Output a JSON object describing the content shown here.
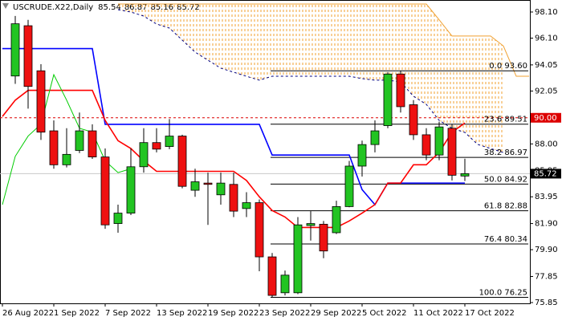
{
  "chart_data": {
    "type": "candlestick",
    "title": "USCRUDE.X22,Daily",
    "header_values": [
      85.54,
      86.87,
      85.16,
      85.72
    ],
    "categories": [
      "26 Aug 2022",
      null,
      null,
      null,
      "1 Sep 2022",
      null,
      null,
      null,
      "7 Sep 2022",
      null,
      null,
      null,
      "13 Sep 2022",
      null,
      null,
      null,
      "19 Sep 2022",
      null,
      null,
      null,
      "23 Sep 2022",
      null,
      null,
      null,
      "29 Sep 2022",
      null,
      null,
      null,
      "5 Oct 2022",
      null,
      null,
      null,
      "11 Oct 2022",
      null,
      null,
      null,
      "17 Oct 2022",
      null,
      null,
      null,
      null,
      null
    ],
    "open": [
      null,
      93.2,
      97.05,
      93.6,
      89.0,
      86.4,
      87.5,
      89.0,
      87.0,
      81.9,
      82.7,
      86.25,
      88.1,
      87.8,
      88.6,
      84.45,
      85.0,
      84.1,
      84.9,
      83.05,
      83.5,
      79.35,
      76.6,
      76.6,
      81.75,
      81.85,
      81.2,
      83.2,
      86.3,
      87.95,
      89.4,
      93.35,
      91.0,
      88.7,
      87.15,
      89.2,
      85.54,
      null,
      null,
      null,
      null,
      null
    ],
    "high": [
      null,
      97.8,
      97.5,
      94.1,
      89.8,
      89.2,
      90.4,
      89.5,
      87.65,
      83.35,
      87.65,
      89.2,
      89.2,
      89.9,
      88.7,
      86.1,
      85.8,
      85.8,
      85.8,
      84.3,
      83.75,
      79.65,
      78.3,
      82.4,
      82.85,
      82.1,
      83.65,
      86.7,
      88.25,
      89.8,
      93.5,
      93.6,
      91.35,
      89.2,
      89.7,
      89.5,
      86.87,
      null,
      null,
      null,
      null,
      null
    ],
    "low": [
      null,
      92.6,
      90.7,
      88.3,
      86.1,
      86.2,
      87.3,
      86.85,
      81.5,
      81.2,
      82.55,
      85.8,
      87.35,
      87.6,
      84.6,
      83.95,
      81.8,
      83.35,
      82.4,
      82.4,
      78.25,
      76.25,
      76.4,
      76.5,
      80.6,
      79.25,
      81.1,
      83.15,
      85.5,
      87.35,
      89.2,
      90.4,
      88.3,
      86.75,
      86.75,
      85.2,
      85.16,
      null,
      null,
      null,
      null,
      null
    ],
    "close": [
      null,
      97.2,
      92.4,
      88.9,
      86.4,
      87.2,
      89.0,
      87.0,
      81.8,
      82.7,
      86.25,
      88.1,
      87.6,
      88.6,
      84.75,
      85.1,
      84.9,
      85.0,
      82.85,
      83.5,
      79.35,
      76.4,
      77.95,
      81.8,
      81.9,
      79.8,
      83.2,
      86.3,
      87.95,
      89.0,
      93.35,
      90.85,
      88.7,
      87.15,
      89.3,
      85.6,
      85.72,
      null,
      null,
      null,
      null,
      null
    ],
    "up_color": "#22c422",
    "down_color": "#ee1111",
    "lines": [
      {
        "color": "#0000ff",
        "values": [
          95.3,
          95.3,
          95.3,
          95.3,
          95.3,
          95.3,
          95.3,
          95.3,
          89.5,
          89.5,
          89.5,
          89.5,
          89.5,
          89.5,
          89.5,
          89.5,
          89.5,
          89.5,
          89.5,
          89.5,
          89.5,
          87.15,
          87.15,
          87.15,
          87.15,
          87.15,
          87.15,
          87.15,
          84.5,
          83.35,
          85.0,
          85.0,
          85.0,
          85.0,
          85.0,
          85.0,
          85.0,
          null,
          null,
          null,
          null,
          null
        ]
      },
      {
        "color": "#ff0000",
        "values": [
          90.1,
          91.35,
          92.1,
          92.1,
          92.1,
          92.1,
          92.1,
          92.1,
          89.8,
          88.25,
          87.65,
          86.7,
          85.9,
          85.9,
          85.9,
          85.9,
          85.9,
          85.9,
          85.9,
          85.2,
          83.95,
          82.9,
          82.4,
          81.6,
          81.6,
          81.6,
          81.6,
          82.1,
          82.7,
          83.35,
          85.0,
          85.0,
          86.4,
          86.4,
          87.35,
          88.9,
          89.6,
          null,
          null,
          null,
          null,
          null
        ]
      },
      {
        "color": "#00cc00",
        "values": [
          83.35,
          87.05,
          88.6,
          89.5,
          93.3,
          91.35,
          89.2,
          88.9,
          86.7,
          85.8,
          86.1,
          null,
          null,
          null,
          null,
          null,
          null,
          null,
          null,
          null,
          null,
          null,
          null,
          null,
          null,
          null,
          null,
          null,
          null,
          null,
          null,
          null,
          null,
          null,
          null,
          null,
          null,
          null,
          null,
          null,
          null,
          null
        ]
      }
    ],
    "cloud": {
      "upper_color": "#f0a030",
      "lower_color": "#000080",
      "upper": [
        null,
        null,
        null,
        null,
        null,
        null,
        null,
        null,
        null,
        98.71,
        98.71,
        98.71,
        98.71,
        98.71,
        98.71,
        98.71,
        98.71,
        98.71,
        98.71,
        98.71,
        98.71,
        98.71,
        98.71,
        98.71,
        98.71,
        98.71,
        98.71,
        98.71,
        98.71,
        98.71,
        98.71,
        98.71,
        98.71,
        98.71,
        97.5,
        96.26,
        96.26,
        96.26,
        96.26,
        95.5,
        93.18,
        93.18
      ],
      "lower": [
        null,
        null,
        null,
        null,
        null,
        null,
        null,
        null,
        null,
        98.28,
        98.1,
        97.79,
        97.18,
        96.87,
        95.95,
        95.03,
        94.41,
        93.8,
        93.49,
        93.18,
        92.88,
        93.18,
        93.18,
        93.18,
        93.18,
        93.18,
        93.18,
        93.18,
        93.0,
        92.88,
        92.88,
        92.75,
        91.65,
        91.03,
        89.8,
        89.19,
        88.88,
        87.96,
        87.65,
        87.34,
        null,
        null
      ]
    },
    "fib_levels": [
      {
        "value": 93.6,
        "label": "0.0 93.60"
      },
      {
        "value": 89.51,
        "label": "23.6 89.51"
      },
      {
        "value": 86.97,
        "label": "38.2 86.97"
      },
      {
        "value": 84.92,
        "label": "50.0 84.92"
      },
      {
        "value": 82.88,
        "label": "61.8 82.88"
      },
      {
        "value": 80.34,
        "label": "76.4 80.34"
      },
      {
        "value": 76.25,
        "label": "100.0 76.25"
      }
    ],
    "alert_line": {
      "value": 90,
      "label": "90.00",
      "color": "#dd0000"
    },
    "last_price": {
      "value": 85.72,
      "label": "85.72"
    },
    "ylim": [
      75.79,
      99.02
    ],
    "yticks": [
      {
        "value": 98.1,
        "label": "98.10"
      },
      {
        "value": 96.1,
        "label": "96.10"
      },
      {
        "value": 94.05,
        "label": "94.05"
      },
      {
        "value": 92.05,
        "label": "92.05"
      },
      {
        "value": 90,
        "label": "90.00"
      },
      {
        "value": 88,
        "label": "88.00"
      },
      {
        "value": 85.95,
        "label": "85.95"
      },
      {
        "value": 83.95,
        "label": "83.95"
      },
      {
        "value": 81.9,
        "label": "81.90"
      },
      {
        "value": 79.9,
        "label": "79.90"
      },
      {
        "value": 77.85,
        "label": "77.85"
      },
      {
        "value": 75.85,
        "label": "75.85"
      }
    ]
  }
}
